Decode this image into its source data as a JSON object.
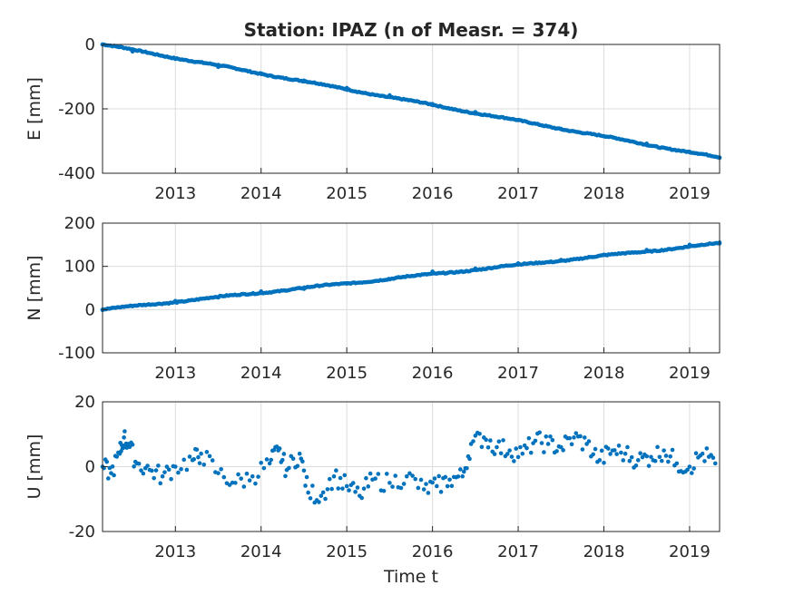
{
  "figure": {
    "title": "Station: IPAZ (n of Measr. = 374)",
    "xlabel": "Time t",
    "series_color": "#0072BD",
    "grid_color": "#dcdcdc"
  },
  "chart_data": [
    {
      "type": "scatter",
      "panel": "E",
      "ylabel": "E [mm]",
      "xlim": [
        2012.15,
        2019.35
      ],
      "ylim": [
        -400,
        0
      ],
      "xticks": [
        2013,
        2014,
        2015,
        2016,
        2017,
        2018,
        2019
      ],
      "yticks": [
        0,
        -200,
        -400
      ],
      "grid": true,
      "trend": {
        "start": [
          2012.15,
          0
        ],
        "end": [
          2019.35,
          -352
        ]
      },
      "values": {
        "x": [
          2012.15,
          2012.5,
          2013.0,
          2013.5,
          2014.0,
          2014.5,
          2015.0,
          2015.5,
          2016.0,
          2016.5,
          2017.0,
          2017.5,
          2018.0,
          2018.5,
          2019.0,
          2019.35
        ],
        "y": [
          0,
          -22,
          -45,
          -70,
          -90,
          -112,
          -135,
          -158,
          -185,
          -210,
          -235,
          -262,
          -285,
          -308,
          -335,
          -352
        ]
      }
    },
    {
      "type": "scatter",
      "panel": "N",
      "ylabel": "N [mm]",
      "xlim": [
        2012.15,
        2019.35
      ],
      "ylim": [
        -100,
        200
      ],
      "xticks": [
        2013,
        2014,
        2015,
        2016,
        2017,
        2018,
        2019
      ],
      "yticks": [
        200,
        100,
        0,
        -100
      ],
      "grid": true,
      "trend": {
        "start": [
          2012.15,
          0
        ],
        "end": [
          2019.35,
          153
        ]
      },
      "values": {
        "x": [
          2012.15,
          2012.5,
          2013.0,
          2013.5,
          2014.0,
          2014.5,
          2015.0,
          2015.5,
          2016.0,
          2016.5,
          2017.0,
          2017.5,
          2018.0,
          2018.5,
          2019.0,
          2019.35
        ],
        "y": [
          0,
          8,
          20,
          28,
          42,
          48,
          60,
          70,
          88,
          95,
          107,
          115,
          127,
          138,
          150,
          153
        ]
      }
    },
    {
      "type": "scatter",
      "panel": "U",
      "ylabel": "U [mm]",
      "xlim": [
        2012.15,
        2019.35
      ],
      "ylim": [
        -20,
        20
      ],
      "xticks": [
        2013,
        2014,
        2015,
        2016,
        2017,
        2018,
        2019
      ],
      "yticks": [
        20,
        0,
        -20
      ],
      "grid": true,
      "values": {
        "x": [
          2012.15,
          2012.25,
          2012.35,
          2012.4,
          2012.45,
          2012.55,
          2012.7,
          2012.85,
          2013.0,
          2013.2,
          2013.3,
          2013.5,
          2013.7,
          2013.9,
          2014.1,
          2014.2,
          2014.3,
          2014.45,
          2014.55,
          2014.7,
          2014.85,
          2015.0,
          2015.15,
          2015.3,
          2015.5,
          2015.7,
          2015.9,
          2016.05,
          2016.2,
          2016.35,
          2016.45,
          2016.6,
          2016.75,
          2016.9,
          2017.05,
          2017.2,
          2017.35,
          2017.5,
          2017.65,
          2017.8,
          2017.95,
          2018.1,
          2018.25,
          2018.4,
          2018.55,
          2018.7,
          2018.85,
          2019.0,
          2019.15,
          2019.3
        ],
        "y": [
          0,
          -2,
          4,
          9,
          7,
          1,
          -1,
          -3,
          0,
          2,
          4,
          -2,
          -5,
          -3,
          1,
          5,
          -1,
          4,
          -8,
          -9,
          -3,
          -6,
          -9,
          -4,
          -5,
          -3,
          -7,
          -6,
          -4,
          -3,
          7,
          9,
          6,
          5,
          4,
          8,
          7,
          6,
          9,
          7,
          2,
          5,
          4,
          2,
          3,
          5,
          1,
          0,
          4,
          1
        ]
      }
    }
  ]
}
